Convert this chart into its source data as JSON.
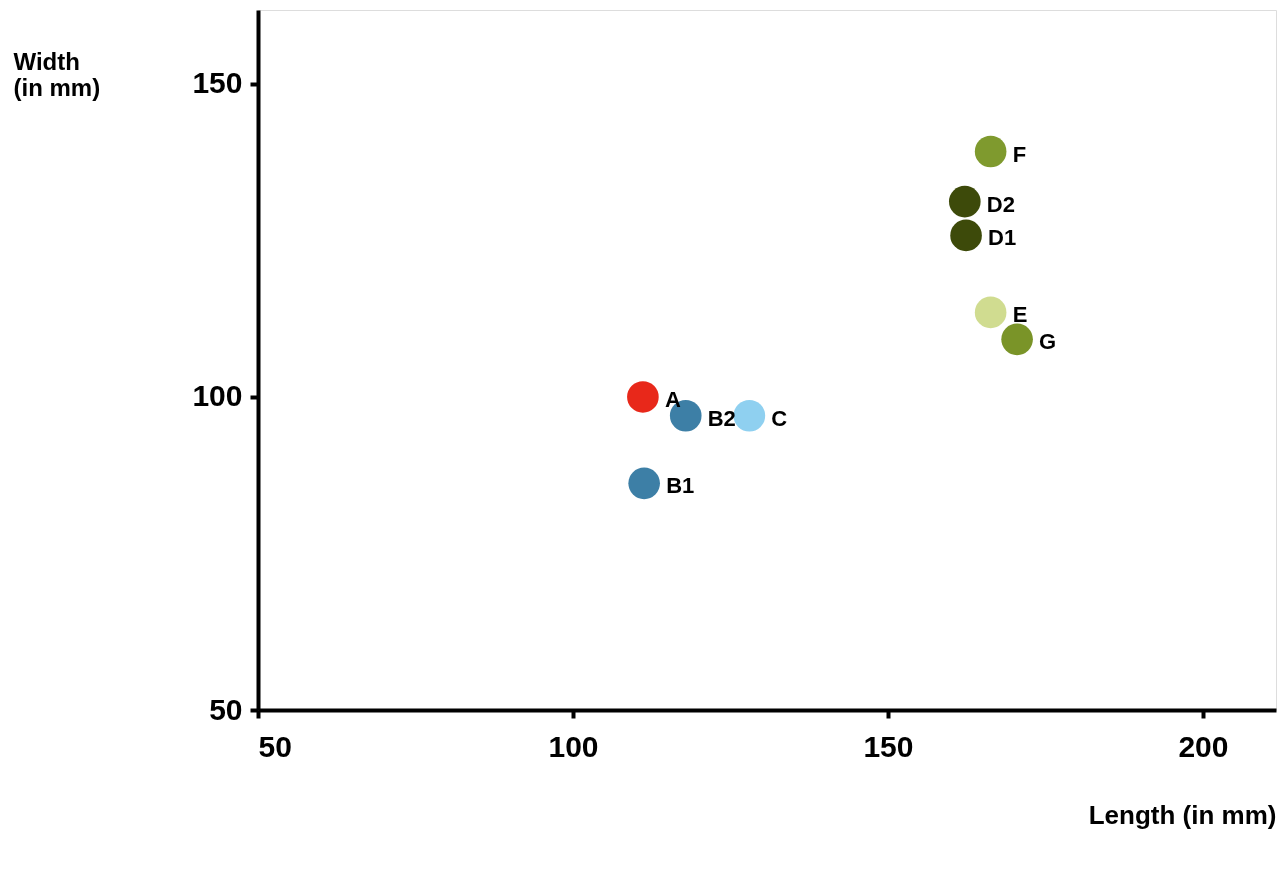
{
  "chart_data": {
    "type": "scatter",
    "xlabel": "Length (in mm)",
    "ylabel": "Width (in mm)",
    "x": [
      111.1,
      117.9,
      128,
      111.3,
      166.3,
      162.2,
      162.4,
      166.3,
      170.5
    ],
    "values": [
      100,
      97,
      97,
      86.2,
      139.2,
      131.2,
      125.8,
      113.5,
      109.2
    ],
    "colors": [
      "#e8281a",
      "#3d7fa6",
      "#8fd0f0",
      "#3d7fa6",
      "#7f9a2e",
      "#3d4a0a",
      "#3d4a0a",
      "#d0dc90",
      "#7a9428"
    ],
    "value_labels": [
      "A",
      "B2",
      "C",
      "B1",
      "F",
      "D2",
      "D1",
      "E",
      "G"
    ],
    "xlim": [
      50,
      211.6
    ],
    "ylim": [
      50,
      161.8
    ],
    "xticks": [
      50,
      100,
      150,
      200
    ],
    "yticks": [
      50,
      100,
      150
    ],
    "grid": false
  }
}
